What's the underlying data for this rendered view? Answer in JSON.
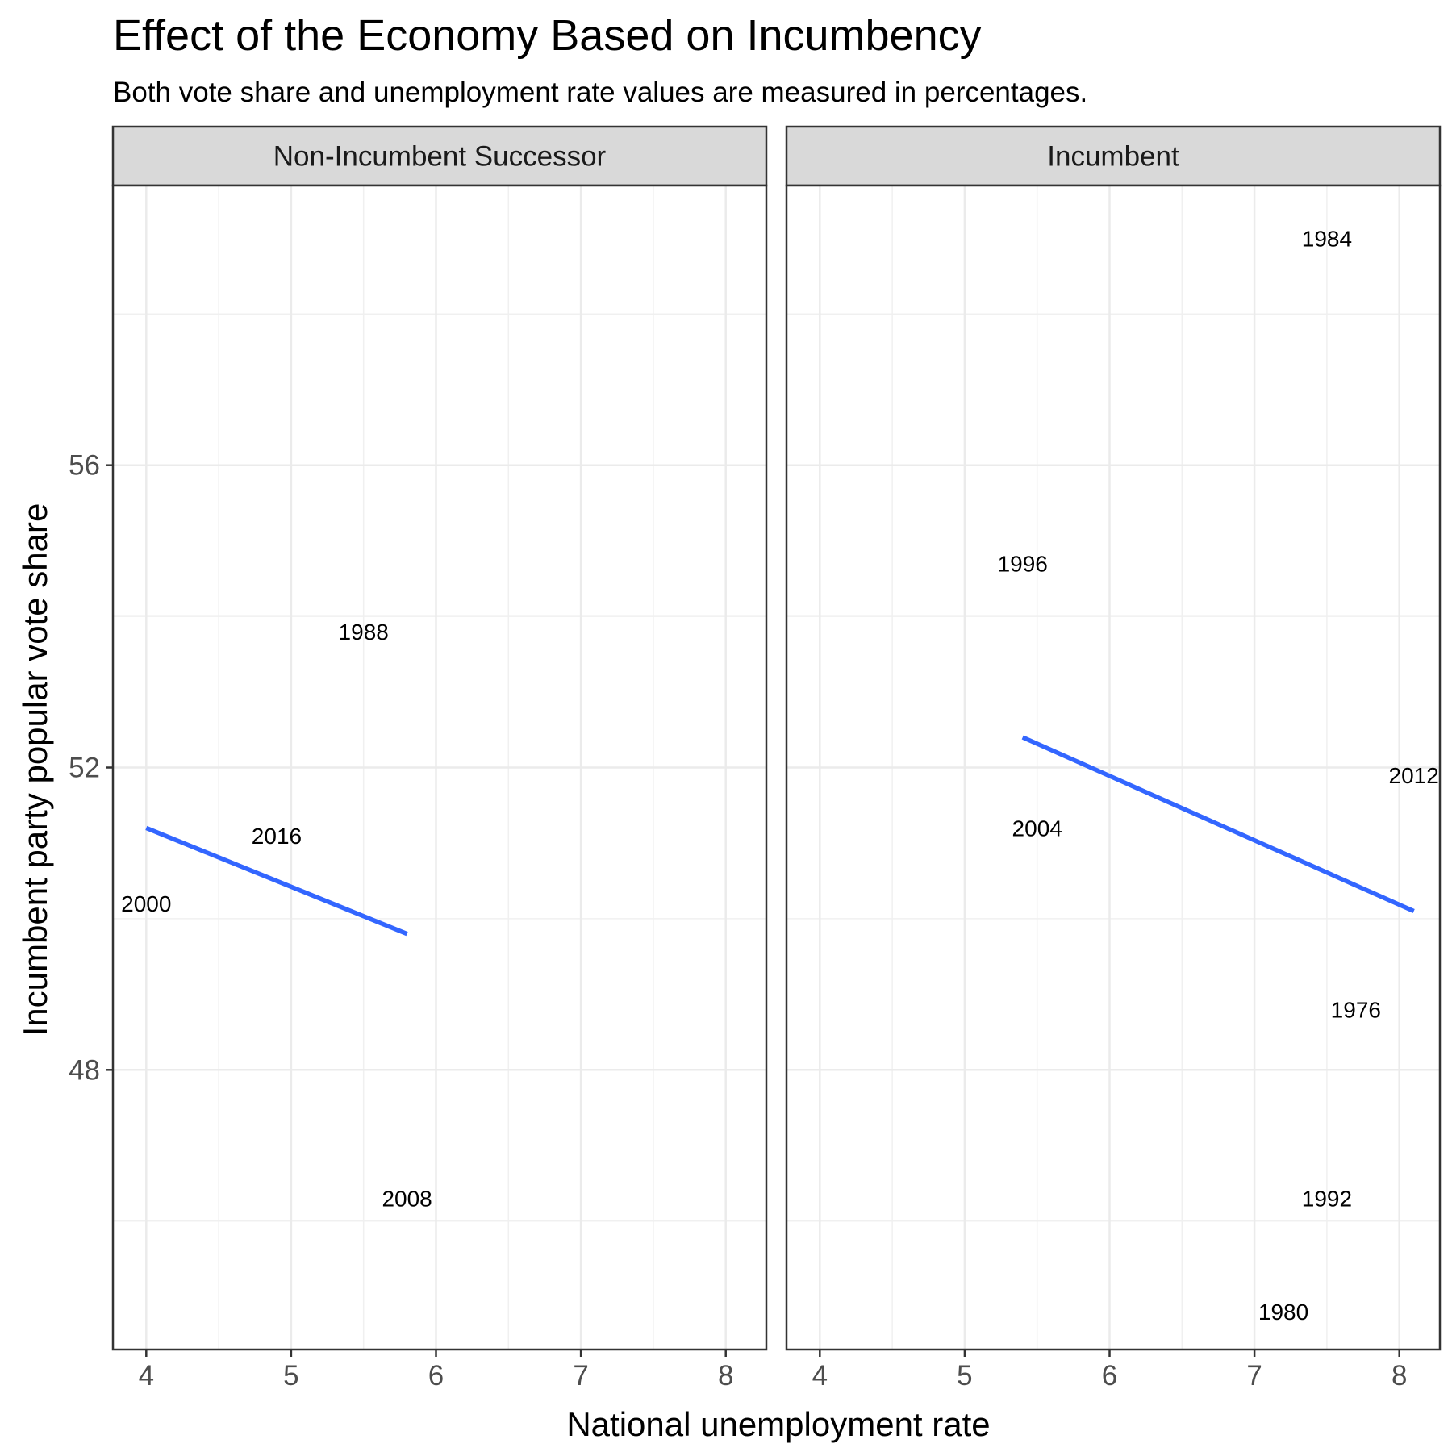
{
  "chart_data": {
    "type": "scatter",
    "title": "Effect of the Economy Based on Incumbency",
    "subtitle": "Both vote share and unemployment rate values are measured in percentages.",
    "xlabel": "National unemployment rate",
    "ylabel": "Incumbent party popular vote share",
    "xlim": [
      3.77,
      8.28
    ],
    "ylim": [
      44.3,
      59.7
    ],
    "x_ticks": [
      4,
      5,
      6,
      7,
      8
    ],
    "y_ticks": [
      48,
      52,
      56
    ],
    "grid": true,
    "facets": [
      {
        "strip": "Non-Incumbent Successor",
        "points": [
          {
            "label": "1988",
            "x": 5.5,
            "y": 53.8
          },
          {
            "label": "2016",
            "x": 4.9,
            "y": 51.1
          },
          {
            "label": "2000",
            "x": 4.0,
            "y": 50.2
          },
          {
            "label": "2008",
            "x": 5.8,
            "y": 46.3
          }
        ],
        "trend": {
          "x": [
            4.0,
            5.8
          ],
          "y": [
            51.2,
            49.8
          ],
          "color": "#3366FF"
        }
      },
      {
        "strip": "Incumbent",
        "points": [
          {
            "label": "1984",
            "x": 7.5,
            "y": 59.0
          },
          {
            "label": "1996",
            "x": 5.4,
            "y": 54.7
          },
          {
            "label": "2012",
            "x": 8.1,
            "y": 51.9
          },
          {
            "label": "2004",
            "x": 5.5,
            "y": 51.2
          },
          {
            "label": "1976",
            "x": 7.7,
            "y": 48.8
          },
          {
            "label": "1992",
            "x": 7.5,
            "y": 46.3
          },
          {
            "label": "1980",
            "x": 7.2,
            "y": 44.8
          }
        ],
        "trend": {
          "x": [
            5.4,
            8.1
          ],
          "y": [
            52.4,
            50.1
          ],
          "color": "#3366FF"
        }
      }
    ]
  }
}
